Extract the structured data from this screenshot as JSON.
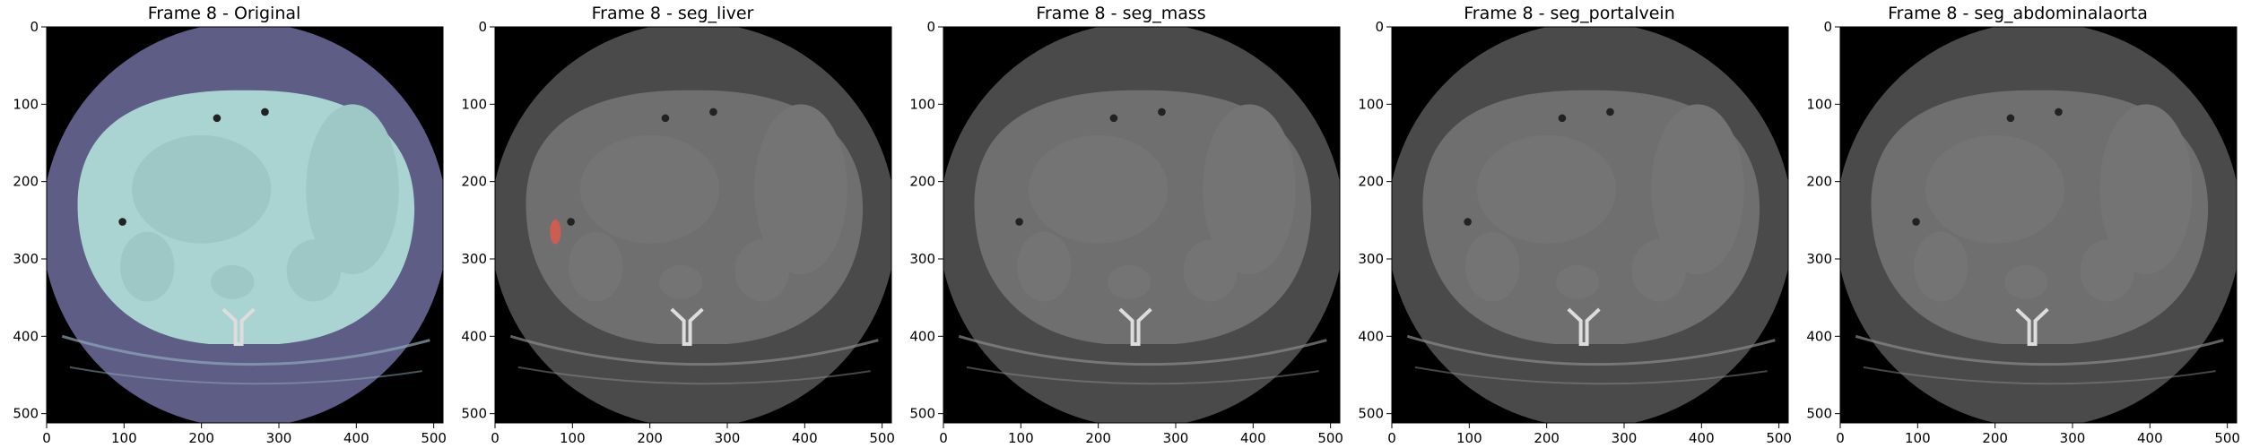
{
  "panels": [
    {
      "title": "Frame 8 - Original",
      "tint": "#b8e6e0",
      "tintOpacity": 0.0,
      "style": "original",
      "overlay": false
    },
    {
      "title": "Frame 8 - seg_liver",
      "tint": "#f08070",
      "style": "gray",
      "overlay": true
    },
    {
      "title": "Frame 8 - seg_mass",
      "style": "gray",
      "overlay": false
    },
    {
      "title": "Frame 8 - seg_portalvein",
      "style": "gray",
      "overlay": false
    },
    {
      "title": "Frame 8 - seg_abdominalaorta",
      "style": "gray",
      "overlay": false
    }
  ],
  "axes": {
    "xticks": [
      "0",
      "100",
      "200",
      "300",
      "400",
      "500"
    ],
    "yticks": [
      "0",
      "100",
      "200",
      "300",
      "400",
      "500"
    ],
    "range": [
      0,
      512
    ]
  },
  "colors": {
    "original_fov": "#5e5d86",
    "original_body": "#aad4d1",
    "original_body_inner": "#9dc8c6",
    "gray_fov": "#4a4a4a",
    "gray_body": "#6f6f6f",
    "gray_body_inner": "#747474",
    "background": "#000000",
    "overlay": "#e05a4a"
  }
}
